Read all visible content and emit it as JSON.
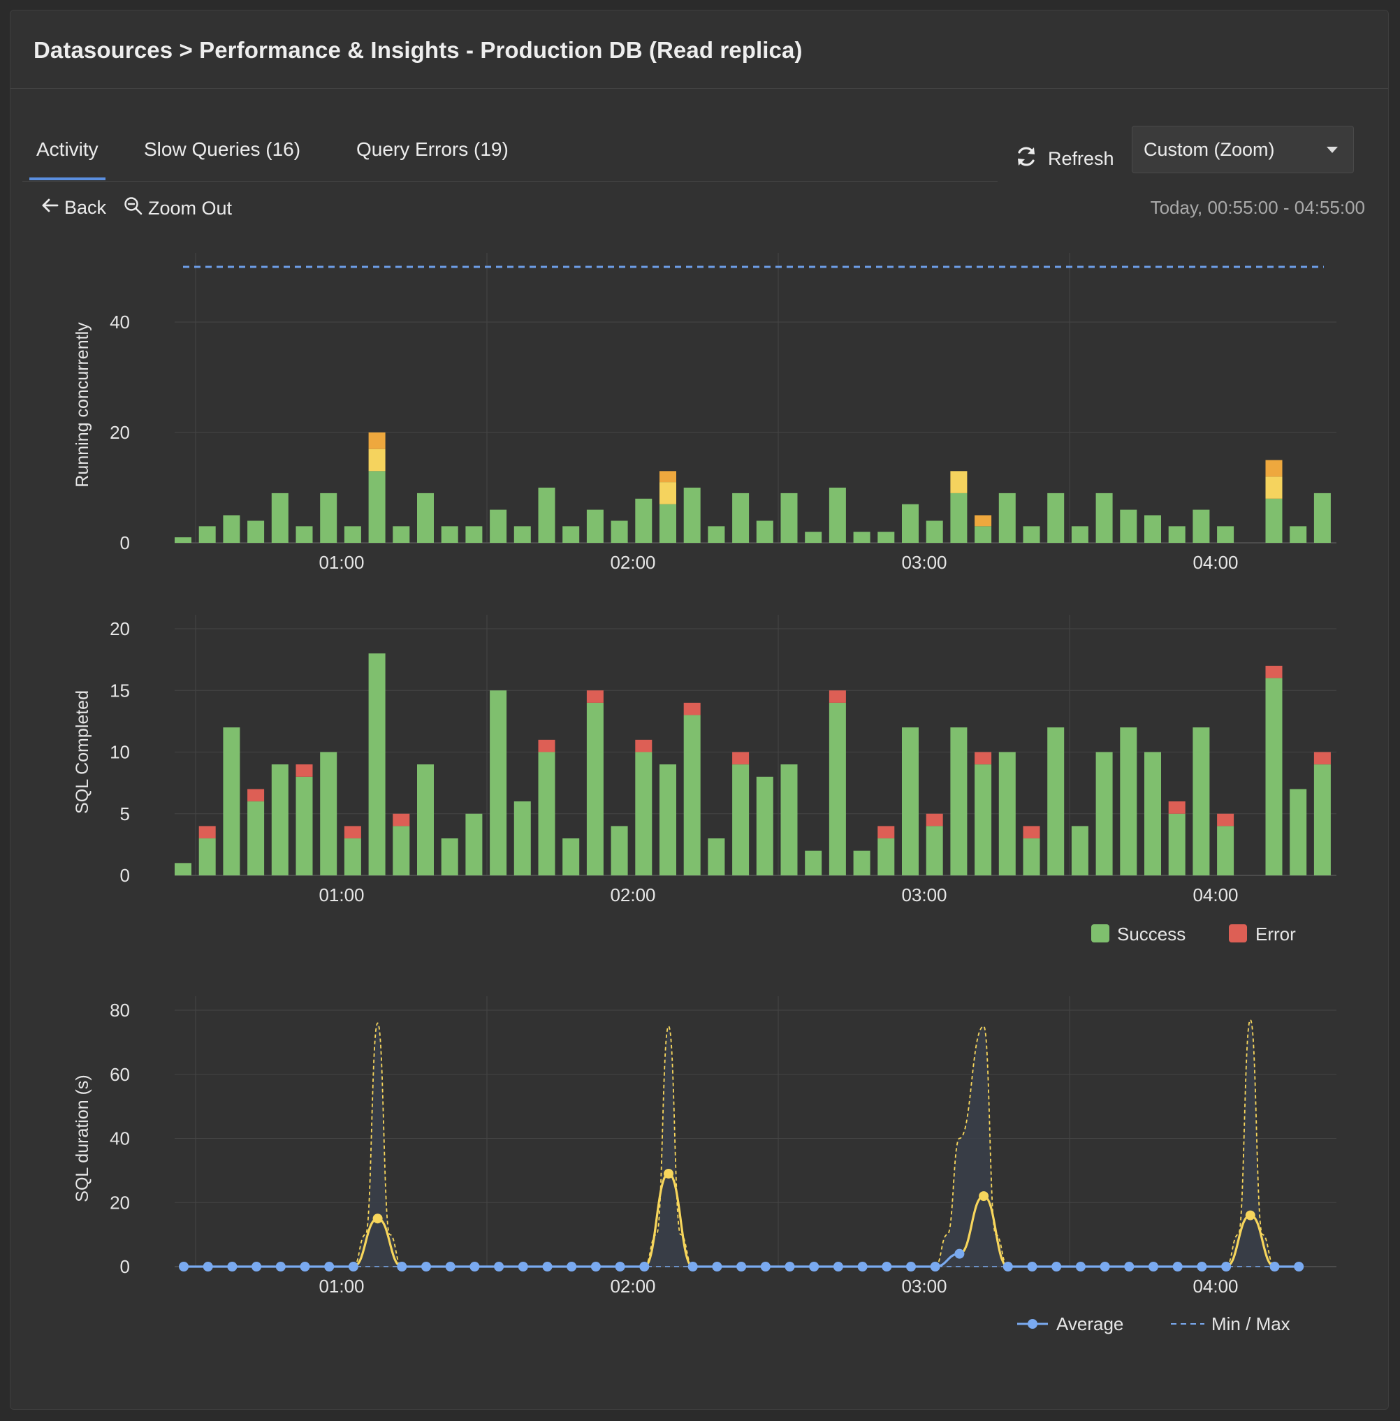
{
  "header": {
    "title": "Datasources > Performance & Insights - Production DB (Read replica)"
  },
  "tabs": [
    {
      "label": "Activity",
      "active": true
    },
    {
      "label": "Slow Queries (16)",
      "active": false
    },
    {
      "label": "Query Errors (19)",
      "active": false
    }
  ],
  "toolbar": {
    "refresh_label": "Refresh",
    "range_value": "Custom (Zoom)",
    "back_label": "Back",
    "zoom_out_label": "Zoom Out",
    "time_range": "Today, 00:55:00 - 04:55:00"
  },
  "colors": {
    "success": "#7fbf6e",
    "error": "#dd5f55",
    "waiting": "#f5d35e",
    "waiting_io": "#eea83e",
    "average": "#7aaaf0",
    "slow": "#f7d65c",
    "grid": "#454545",
    "limit_line": "#6d9ee8"
  },
  "chart_data": [
    {
      "type": "bar",
      "stacked": true,
      "ylabel": "Running concurrently",
      "ylim": [
        0,
        50
      ],
      "yticks": [
        0,
        20,
        40
      ],
      "xticks": [
        "01:00",
        "02:00",
        "03:00",
        "04:00"
      ],
      "reference_line": 50,
      "slots": 48,
      "series": [
        {
          "color_key": "success",
          "values": [
            1,
            3,
            5,
            4,
            9,
            3,
            9,
            3,
            13,
            3,
            9,
            3,
            3,
            6,
            3,
            10,
            3,
            6,
            4,
            8,
            7,
            10,
            3,
            9,
            4,
            9,
            2,
            10,
            2,
            2,
            7,
            4,
            9,
            3,
            9,
            3,
            9,
            3,
            9,
            6,
            5,
            3,
            6,
            3,
            0,
            8,
            3,
            9
          ]
        },
        {
          "color_key": "waiting",
          "values": [
            0,
            0,
            0,
            0,
            0,
            0,
            0,
            0,
            4,
            0,
            0,
            0,
            0,
            0,
            0,
            0,
            0,
            0,
            0,
            0,
            4,
            0,
            0,
            0,
            0,
            0,
            0,
            0,
            0,
            0,
            0,
            0,
            4,
            0,
            0,
            0,
            0,
            0,
            0,
            0,
            0,
            0,
            0,
            0,
            0,
            4,
            0,
            0
          ]
        },
        {
          "color_key": "waiting_io",
          "values": [
            0,
            0,
            0,
            0,
            0,
            0,
            0,
            0,
            3,
            0,
            0,
            0,
            0,
            0,
            0,
            0,
            0,
            0,
            0,
            0,
            2,
            0,
            0,
            0,
            0,
            0,
            0,
            0,
            0,
            0,
            0,
            0,
            0,
            2,
            0,
            0,
            0,
            0,
            0,
            0,
            0,
            0,
            0,
            0,
            0,
            3,
            0,
            0
          ]
        }
      ]
    },
    {
      "type": "bar",
      "stacked": true,
      "ylabel": "SQL Completed",
      "ylim": [
        0,
        20
      ],
      "yticks": [
        0,
        5,
        10,
        15,
        20
      ],
      "xticks": [
        "01:00",
        "02:00",
        "03:00",
        "04:00"
      ],
      "slots": 48,
      "series": [
        {
          "name": "Success",
          "color_key": "success",
          "values": [
            1,
            3,
            12,
            6,
            9,
            8,
            10,
            3,
            18,
            4,
            9,
            3,
            5,
            15,
            6,
            10,
            3,
            14,
            4,
            10,
            9,
            13,
            3,
            9,
            8,
            9,
            2,
            14,
            2,
            3,
            12,
            4,
            12,
            9,
            10,
            3,
            12,
            4,
            10,
            12,
            10,
            5,
            12,
            4,
            0,
            16,
            7,
            9
          ]
        },
        {
          "name": "Error",
          "color_key": "error",
          "values": [
            0,
            1,
            0,
            1,
            0,
            1,
            0,
            1,
            0,
            1,
            0,
            0,
            0,
            0,
            0,
            1,
            0,
            1,
            0,
            1,
            0,
            1,
            0,
            1,
            0,
            0,
            0,
            1,
            0,
            1,
            0,
            1,
            0,
            1,
            0,
            1,
            0,
            0,
            0,
            0,
            0,
            1,
            0,
            1,
            0,
            1,
            0,
            1
          ]
        }
      ]
    },
    {
      "type": "line",
      "ylabel": "SQL duration (s)",
      "ylim": [
        0,
        80
      ],
      "yticks": [
        0,
        20,
        40,
        60,
        80
      ],
      "xticks": [
        "01:00",
        "02:00",
        "03:00",
        "04:00"
      ],
      "series": [
        {
          "name": "Average",
          "color_key": "average",
          "slow_color_key": "slow",
          "slow_threshold": 10,
          "points": [
            [
              0,
              0
            ],
            [
              1,
              0
            ],
            [
              2,
              0
            ],
            [
              3,
              0
            ],
            [
              4,
              0
            ],
            [
              5,
              0
            ],
            [
              6,
              0
            ],
            [
              7,
              0
            ],
            [
              8,
              15
            ],
            [
              9,
              0
            ],
            [
              10,
              0
            ],
            [
              11,
              0
            ],
            [
              12,
              0
            ],
            [
              13,
              0
            ],
            [
              14,
              0
            ],
            [
              15,
              0
            ],
            [
              16,
              0
            ],
            [
              17,
              0
            ],
            [
              18,
              0
            ],
            [
              19,
              0
            ],
            [
              20,
              29
            ],
            [
              21,
              0
            ],
            [
              22,
              0
            ],
            [
              23,
              0
            ],
            [
              24,
              0
            ],
            [
              25,
              0
            ],
            [
              26,
              0
            ],
            [
              27,
              0
            ],
            [
              28,
              0
            ],
            [
              29,
              0
            ],
            [
              30,
              0
            ],
            [
              31,
              0
            ],
            [
              32,
              4
            ],
            [
              33,
              22
            ],
            [
              34,
              0
            ],
            [
              35,
              0
            ],
            [
              36,
              0
            ],
            [
              37,
              0
            ],
            [
              38,
              0
            ],
            [
              39,
              0
            ],
            [
              40,
              0
            ],
            [
              41,
              0
            ],
            [
              42,
              0
            ],
            [
              43,
              0
            ],
            [
              44,
              16
            ],
            [
              45,
              0
            ],
            [
              46,
              0
            ]
          ]
        },
        {
          "name": "Min / Max",
          "color_key": "slow",
          "points": [
            [
              7,
              0
            ],
            [
              7.5,
              10
            ],
            [
              8,
              76
            ],
            [
              8.5,
              10
            ],
            [
              9,
              0
            ],
            [
              19,
              0
            ],
            [
              19.5,
              10
            ],
            [
              20,
              75
            ],
            [
              20.5,
              10
            ],
            [
              21,
              0
            ],
            [
              31,
              0
            ],
            [
              31.5,
              10
            ],
            [
              32,
              40
            ],
            [
              33,
              75
            ],
            [
              33.5,
              10
            ],
            [
              34,
              0
            ],
            [
              43,
              0
            ],
            [
              43.5,
              10
            ],
            [
              44,
              77
            ],
            [
              44.5,
              10
            ],
            [
              45,
              0
            ]
          ]
        }
      ]
    }
  ]
}
